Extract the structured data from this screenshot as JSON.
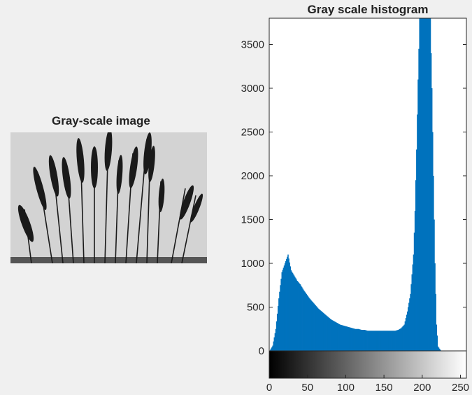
{
  "image_panel": {
    "title": "Gray-scale image"
  },
  "chart_data": {
    "type": "bar",
    "title": "Gray scale histogram",
    "xlabel": "",
    "ylabel": "",
    "xlim": [
      0,
      255
    ],
    "ylim": [
      0,
      3800
    ],
    "grid": false,
    "legend": "none",
    "bar_color": "#0072bd",
    "colorbar": "grayscale gradient from black (0) to white (255) beneath x-axis",
    "x_ticks": [
      0,
      50,
      100,
      150,
      200,
      250
    ],
    "y_ticks": [
      0,
      500,
      1000,
      1500,
      2000,
      2500,
      3000,
      3500
    ],
    "x_tick_labels": [
      "0",
      "50",
      "100",
      "150",
      "200",
      "250"
    ],
    "y_tick_labels": [
      "0",
      "500",
      "1000",
      "1500",
      "2000",
      "2500",
      "3000",
      "3500"
    ],
    "series": [
      {
        "x": [
          0,
          4,
          8,
          12,
          16,
          20,
          24,
          28,
          32,
          36,
          40,
          44,
          48,
          52,
          56,
          60,
          64,
          68,
          72,
          76,
          80,
          84,
          88,
          92,
          96,
          100,
          104,
          108,
          112,
          116,
          120,
          124,
          128,
          132,
          136,
          140,
          144,
          148,
          152,
          156,
          160,
          164,
          168,
          172,
          176,
          180,
          184,
          188,
          190,
          192,
          194,
          196,
          198,
          200,
          202,
          204,
          206,
          208,
          210,
          212,
          214,
          216,
          218,
          220,
          224,
          228,
          232,
          236,
          240,
          244,
          248,
          252,
          255
        ],
        "values": [
          0,
          60,
          250,
          600,
          900,
          1000,
          1100,
          920,
          860,
          800,
          760,
          700,
          650,
          600,
          560,
          520,
          480,
          450,
          420,
          390,
          360,
          340,
          320,
          300,
          290,
          280,
          270,
          260,
          250,
          250,
          240,
          240,
          230,
          230,
          230,
          230,
          230,
          230,
          230,
          230,
          230,
          230,
          240,
          260,
          300,
          450,
          650,
          1100,
          1600,
          2300,
          3100,
          3800,
          3800,
          3800,
          3800,
          3800,
          3800,
          3800,
          3800,
          3000,
          2000,
          1000,
          300,
          50,
          0,
          0,
          0,
          0,
          0,
          0,
          0,
          0,
          0
        ]
      }
    ]
  }
}
